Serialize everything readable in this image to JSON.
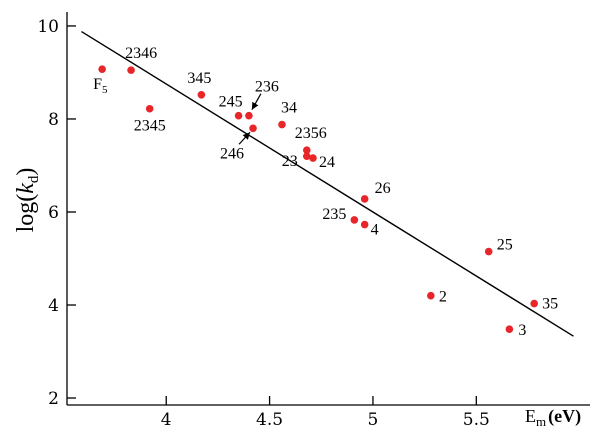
{
  "chart_data": {
    "type": "scatter",
    "title": "",
    "xlabel": {
      "main": "E",
      "sub": "m",
      "unit": "(eV)"
    },
    "ylabel": {
      "prefix": "log(",
      "var": "k",
      "sub": "d",
      "suffix": ")"
    },
    "xlim": [
      3.52,
      6.05
    ],
    "ylim": [
      1.85,
      10.3
    ],
    "xticks": [
      4,
      4.5,
      5,
      5.5
    ],
    "xtick_labels": [
      "4",
      "4.5",
      "5",
      "5.5"
    ],
    "yticks": [
      2,
      4,
      6,
      8,
      10
    ],
    "ytick_labels": [
      "2",
      "4",
      "6",
      "8",
      "10"
    ],
    "grid": false,
    "point_color": "#e8262a",
    "fit_line": {
      "x": [
        3.59,
        5.97
      ],
      "y": [
        9.88,
        3.33
      ]
    },
    "points": [
      {
        "label": "F",
        "label_sub": "5",
        "x": 3.69,
        "y": 9.07
      },
      {
        "label": "2346",
        "x": 3.83,
        "y": 9.05
      },
      {
        "label": "2345",
        "x": 3.92,
        "y": 8.22
      },
      {
        "label": "345",
        "x": 4.17,
        "y": 8.52
      },
      {
        "label": "245",
        "x": 4.35,
        "y": 8.07
      },
      {
        "label": "236",
        "x": 4.4,
        "y": 8.07
      },
      {
        "label": "246",
        "x": 4.42,
        "y": 7.8
      },
      {
        "label": "34",
        "x": 4.56,
        "y": 7.88
      },
      {
        "label": "2356",
        "x": 4.68,
        "y": 7.33
      },
      {
        "label": "23",
        "x": 4.68,
        "y": 7.2
      },
      {
        "label": "24",
        "x": 4.71,
        "y": 7.16
      },
      {
        "label": "26",
        "x": 4.96,
        "y": 6.28
      },
      {
        "label": "235",
        "x": 4.91,
        "y": 5.83
      },
      {
        "label": "4",
        "x": 4.96,
        "y": 5.73
      },
      {
        "label": "25",
        "x": 5.56,
        "y": 5.15
      },
      {
        "label": "2",
        "x": 5.28,
        "y": 4.2
      },
      {
        "label": "35",
        "x": 5.78,
        "y": 4.03
      },
      {
        "label": "3",
        "x": 5.66,
        "y": 3.48
      }
    ]
  }
}
